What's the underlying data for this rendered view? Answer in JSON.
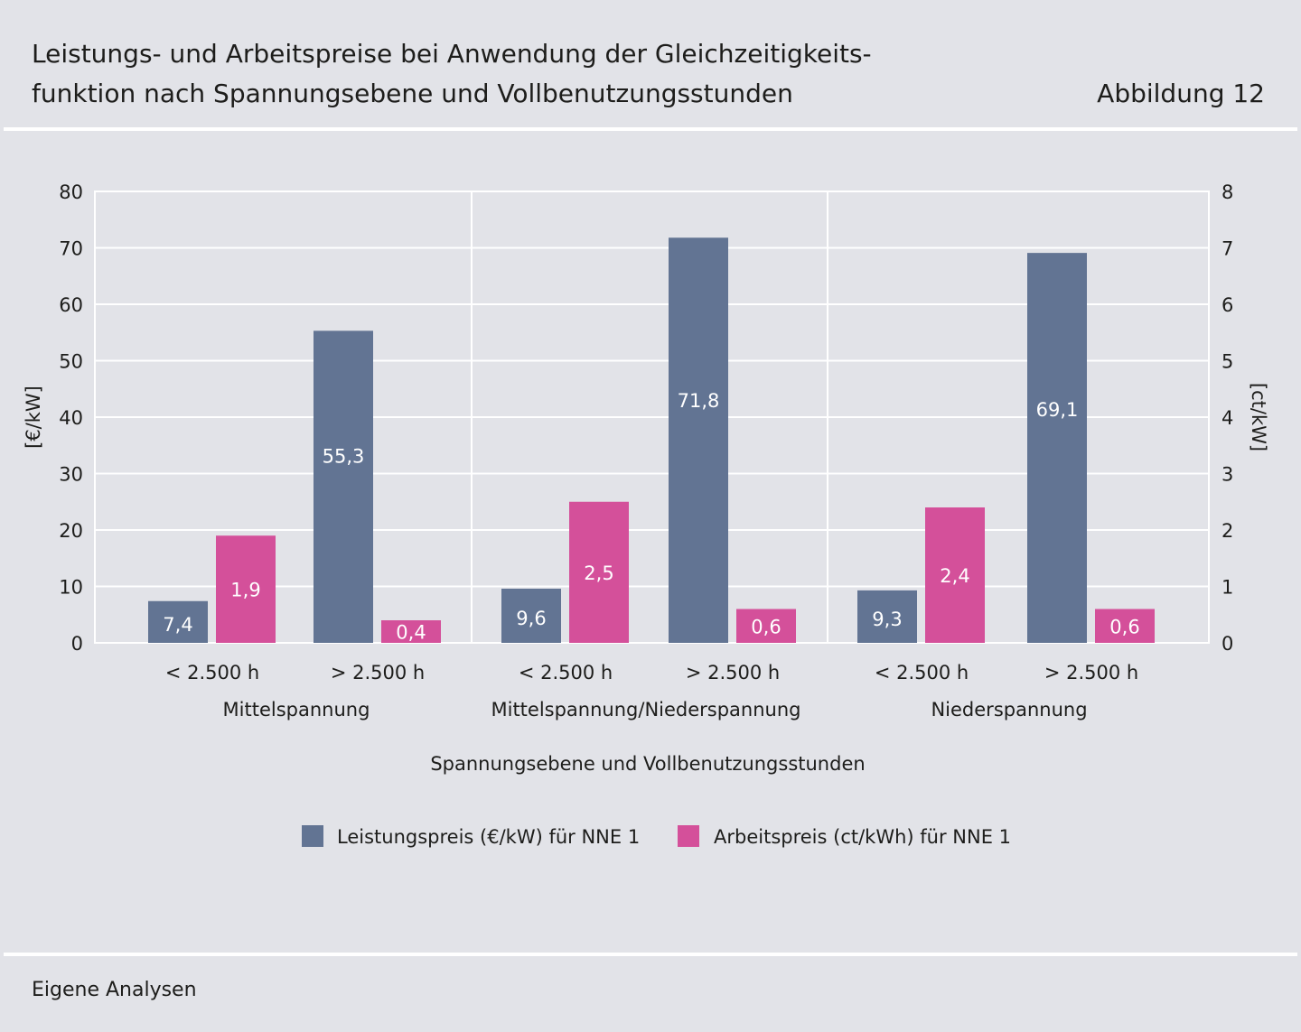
{
  "header": {
    "title_line1": "Leistungs- und Arbeitspreise bei Anwendung der Gleichzeitigkeits-",
    "title_line2": "funktion nach Spannungsebene und Vollbenutzungsstunden",
    "figure_label": "Abbildung 12"
  },
  "footer": {
    "source": "Eigene Analysen"
  },
  "chart_data": {
    "type": "bar",
    "title": "Leistungs- und Arbeitspreise bei Anwendung der Gleichzeitigkeitsfunktion nach Spannungsebene und Vollbenutzungsstunden",
    "xlabel": "Spannungsebene und Vollbenutzungsstunden",
    "ylabel": "[€/kW]",
    "y2label": "[ct/kW]",
    "ylim": [
      0,
      80
    ],
    "y2lim": [
      0,
      8
    ],
    "yticks": [
      "0",
      "10",
      "20",
      "30",
      "40",
      "50",
      "60",
      "70",
      "80"
    ],
    "y2ticks": [
      "0",
      "1",
      "2",
      "3",
      "4",
      "5",
      "6",
      "7",
      "8"
    ],
    "groups": [
      "Mittelspannung",
      "Mittelspannung/Niederspannung",
      "Niederspannung"
    ],
    "categories": [
      "< 2.500 h",
      "> 2.500 h",
      "< 2.500 h",
      "> 2.500 h",
      "< 2.500 h",
      "> 2.500 h"
    ],
    "grid": true,
    "legend_position": "bottom",
    "series": [
      {
        "name": "Leistungspreis (€/kW) für NNE 1",
        "axis": "left",
        "color": "#627493",
        "values": [
          7.4,
          55.3,
          9.6,
          71.8,
          9.3,
          69.1
        ],
        "labels": [
          "7,4",
          "55,3",
          "9,6",
          "71,8",
          "9,3",
          "69,1"
        ]
      },
      {
        "name": "Arbeitspreis (ct/kWh) für NNE 1",
        "axis": "right",
        "color": "#d4509a",
        "values": [
          1.9,
          0.4,
          2.5,
          0.6,
          2.4,
          0.6
        ],
        "labels": [
          "1,9",
          "0,4",
          "2,5",
          "0,6",
          "2,4",
          "0,6"
        ]
      }
    ]
  }
}
